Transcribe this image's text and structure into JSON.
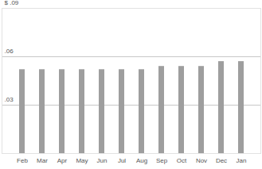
{
  "chart_data": {
    "type": "bar",
    "categories": [
      "Feb",
      "Mar",
      "Apr",
      "May",
      "Jun",
      "Jul",
      "Aug",
      "Sep",
      "Oct",
      "Nov",
      "Dec",
      "Jan"
    ],
    "values": [
      0.052,
      0.052,
      0.052,
      0.052,
      0.052,
      0.052,
      0.052,
      0.054,
      0.054,
      0.054,
      0.057,
      0.057
    ],
    "color": "#9e9e9e",
    "ylim": [
      0,
      0.09
    ],
    "yticks": [
      {
        "value": 0.03,
        "label": ".03"
      },
      {
        "value": 0.06,
        "label": ".06"
      },
      {
        "value": 0.09,
        "label": "$ .09"
      }
    ],
    "grid": true
  }
}
